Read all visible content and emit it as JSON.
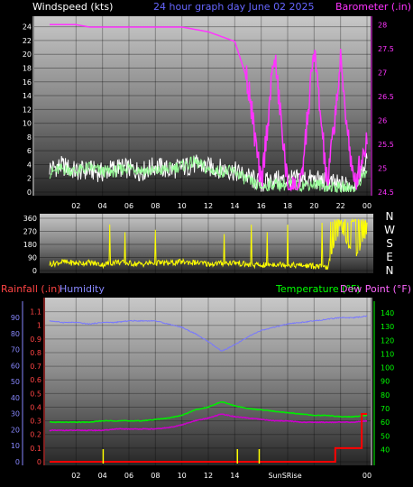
{
  "colors": {
    "wind": "#ffffff",
    "gust": "#99ff99",
    "baro": "#ff33ff",
    "dir": "#ffff00",
    "humidity": "#7777ff",
    "temp": "#00ee00",
    "dew": "#cc00cc",
    "rain_left": "#ff4444",
    "rain": "#ff0000",
    "humidity_label": "#8888ff",
    "temp_label": "#00ff00",
    "dew_label": "#ff66ff",
    "sun": "#ffff00"
  },
  "chart_data": [
    {
      "type": "line",
      "title": "24 hour graph day   June 02 2025",
      "ylabel": "Windspeed (kts)",
      "y2label": "Barometer (.in)",
      "ylim": [
        0,
        25
      ],
      "y2lim": [
        24.5,
        28.1
      ],
      "yticks": [
        "0",
        "2",
        "4",
        "6",
        "8",
        "10",
        "12",
        "14",
        "16",
        "18",
        "20",
        "22",
        "24"
      ],
      "y2ticks": [
        "24.5",
        "25",
        "25.5",
        "26",
        "26.5",
        "27",
        "27.5",
        "28"
      ],
      "xticks": [
        "02",
        "04",
        "06",
        "08",
        "10",
        "12",
        "14",
        "16",
        "18",
        "20",
        "22",
        "00"
      ],
      "x_hours": [
        0,
        1,
        2,
        3,
        4,
        5,
        6,
        7,
        8,
        9,
        10,
        11,
        12,
        13,
        14,
        15,
        16,
        17,
        18,
        19,
        20,
        21,
        22,
        23,
        24
      ],
      "series": [
        {
          "values": [
            3.5,
            3.8,
            3.0,
            3.2,
            2.8,
            3.6,
            3.4,
            3.0,
            3.8,
            3.2,
            3.6,
            4.0,
            3.6,
            3.4,
            3.0,
            2.2,
            1.2,
            1.8,
            1.6,
            2.0,
            1.8,
            1.4,
            1.0,
            1.2,
            4.5
          ]
        },
        {
          "values": [
            2.8,
            3.4,
            3.0,
            3.6,
            3.0,
            3.0,
            3.6,
            3.2,
            3.0,
            3.4,
            3.8,
            4.4,
            3.2,
            3.0,
            3.0,
            1.6,
            0.8,
            1.2,
            1.0,
            1.0,
            1.2,
            0.8,
            0.6,
            0.6,
            3.0
          ]
        },
        {
          "values": [
            28.0,
            28.0,
            28.0,
            27.95,
            27.95,
            27.95,
            27.95,
            27.95,
            27.95,
            27.95,
            27.95,
            27.9,
            27.85,
            27.75,
            27.65,
            26.8,
            24.6,
            27.4,
            24.6,
            24.6,
            27.5,
            24.6,
            27.2,
            24.6,
            25.6
          ]
        }
      ]
    },
    {
      "type": "line",
      "ylabel": "",
      "ylim": [
        0,
        360
      ],
      "yticks": [
        "0",
        "90",
        "180",
        "270",
        "360"
      ],
      "compass": [
        "N",
        "W",
        "S",
        "E",
        "N"
      ],
      "x_hours": [
        0,
        1,
        2,
        3,
        4,
        5,
        6,
        7,
        8,
        9,
        10,
        11,
        12,
        13,
        14,
        15,
        16,
        17,
        18,
        19,
        20,
        21,
        22,
        23,
        24
      ],
      "series": [
        {
          "values": [
            45,
            60,
            50,
            55,
            40,
            60,
            50,
            45,
            55,
            50,
            60,
            55,
            45,
            50,
            55,
            40,
            35,
            45,
            40,
            35,
            30,
            20,
            300,
            80,
            250
          ]
        }
      ]
    },
    {
      "type": "line",
      "left_labels": {
        "rain": "Rainfall (.in)",
        "humidity": "Humidity"
      },
      "right_labels": {
        "temp": "Temperature (°F)",
        "dew": "Dew Point (°F)"
      },
      "rain_ticks": [
        "0",
        "0.1",
        "0.2",
        "0.3",
        "0.4",
        "0.5",
        "0.6",
        "0.7",
        "0.8",
        "0.9",
        "1",
        "1.1"
      ],
      "humidity_ticks": [
        "0",
        "10",
        "20",
        "30",
        "40",
        "50",
        "60",
        "70",
        "80",
        "90"
      ],
      "temp_ticks": [
        "40",
        "50",
        "60",
        "70",
        "80",
        "90",
        "100",
        "110",
        "120",
        "130",
        "140"
      ],
      "rain_lim": [
        0,
        1.15
      ],
      "humidity_lim": [
        0,
        98
      ],
      "temp_lim": [
        31,
        146
      ],
      "xticks": [
        "02",
        "04",
        "06",
        "08",
        "10",
        "12",
        "14",
        "SunSRise",
        "00"
      ],
      "sun_markers_hour": [
        4.05,
        14.2,
        15.85
      ],
      "x_hours": [
        0,
        1,
        2,
        3,
        4,
        5,
        6,
        7,
        8,
        9,
        10,
        11,
        12,
        13,
        14,
        15,
        16,
        17,
        18,
        19,
        20,
        21,
        22,
        23,
        24
      ],
      "series": [
        {
          "values": [
            88,
            87,
            87,
            86,
            87,
            87,
            88,
            88,
            88,
            86,
            84,
            80,
            75,
            69,
            73,
            78,
            82,
            84,
            86,
            87,
            88,
            89,
            90,
            90,
            91
          ]
        },
        {
          "values": [
            60,
            60,
            60,
            60,
            61,
            61,
            61,
            61,
            62,
            63,
            65,
            69,
            71,
            75,
            72,
            70,
            69,
            68,
            67,
            66,
            65,
            65,
            64,
            64,
            65
          ]
        },
        {
          "values": [
            54,
            54,
            54,
            54,
            54,
            55,
            55,
            55,
            55,
            56,
            58,
            61,
            63,
            66,
            64,
            63,
            62,
            61,
            61,
            60,
            60,
            60,
            60,
            60,
            61
          ]
        },
        {
          "values": [
            0,
            0,
            0,
            0,
            0,
            0,
            0,
            0,
            0,
            0,
            0,
            0,
            0,
            0,
            0,
            0,
            0,
            0,
            0,
            0,
            0,
            0,
            0.1,
            0.1,
            0.35
          ]
        }
      ]
    }
  ]
}
